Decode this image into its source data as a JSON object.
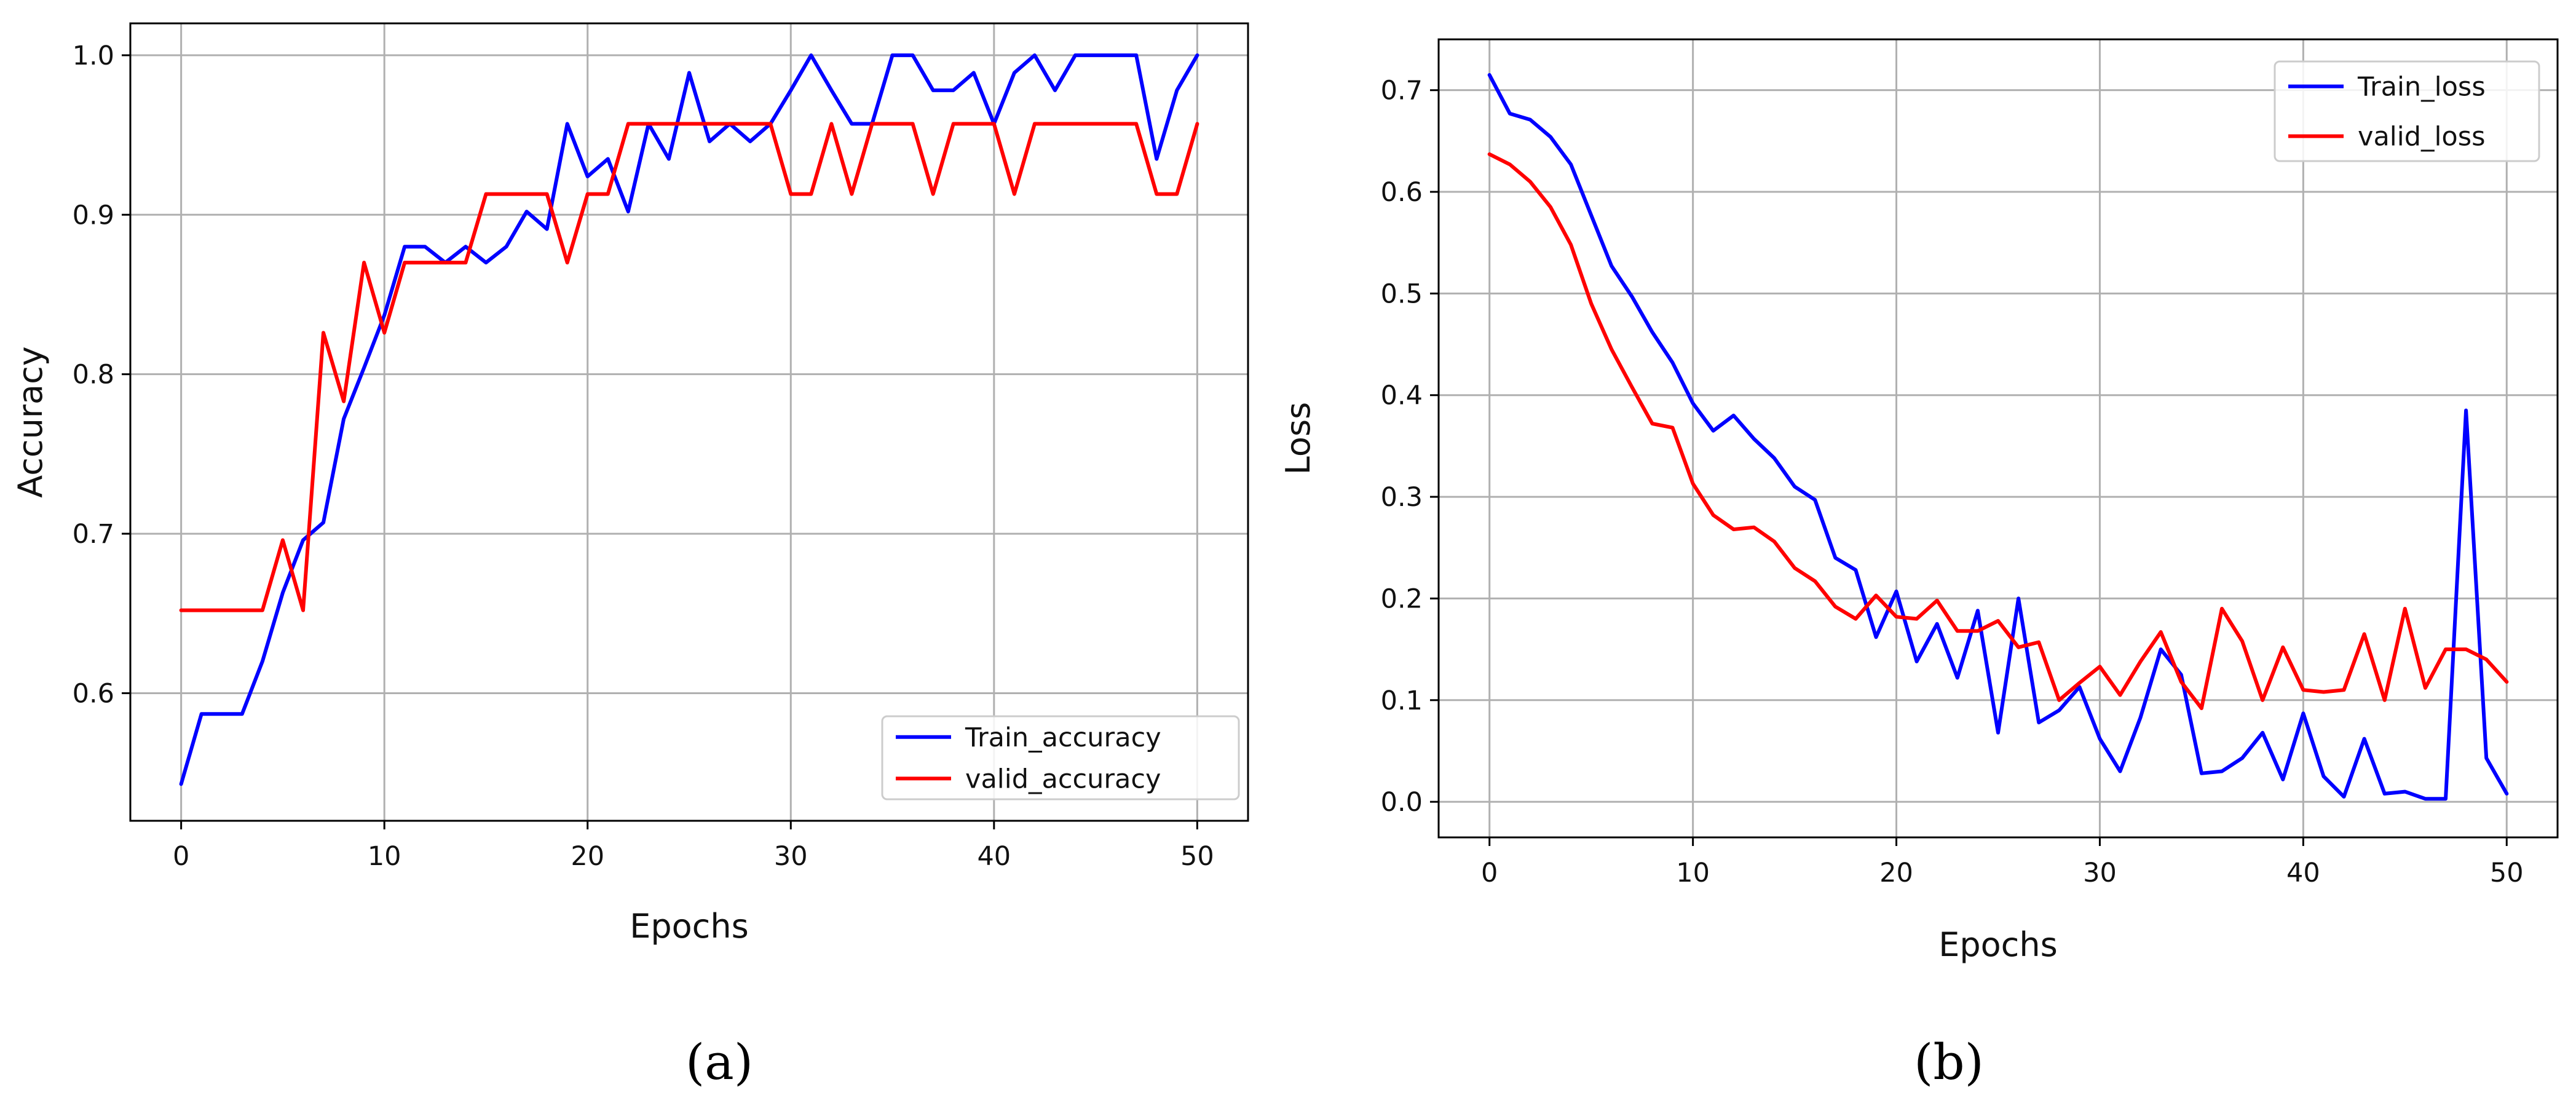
{
  "chart_data": [
    {
      "type": "line",
      "panel": "a",
      "caption": "(a)",
      "title": "",
      "xlabel": "Epochs",
      "ylabel": "Accuracy",
      "xlim": [
        -2.5,
        52.5
      ],
      "ylim": [
        0.52,
        1.02
      ],
      "xticks": [
        0,
        10,
        20,
        30,
        40,
        50
      ],
      "yticks": [
        0.6,
        0.7,
        0.8,
        0.9,
        1.0
      ],
      "ytick_labels": [
        "0.6",
        "0.7",
        "0.8",
        "0.9",
        "1.0"
      ],
      "grid": true,
      "legend_position": "lower-right",
      "x": [
        0,
        1,
        2,
        3,
        4,
        5,
        6,
        7,
        8,
        9,
        10,
        11,
        12,
        13,
        14,
        15,
        16,
        17,
        18,
        19,
        20,
        21,
        22,
        23,
        24,
        25,
        26,
        27,
        28,
        29,
        30,
        31,
        32,
        33,
        34,
        35,
        36,
        37,
        38,
        39,
        40,
        41,
        42,
        43,
        44,
        45,
        46,
        47,
        48,
        49,
        50
      ],
      "series": [
        {
          "name": "Train_accuracy",
          "color": "#0000ff",
          "values": [
            0.543,
            0.587,
            0.587,
            0.587,
            0.62,
            0.663,
            0.696,
            0.707,
            0.772,
            0.804,
            0.837,
            0.88,
            0.88,
            0.87,
            0.88,
            0.87,
            0.88,
            0.902,
            0.891,
            0.957,
            0.924,
            0.935,
            0.902,
            0.957,
            0.935,
            0.989,
            0.946,
            0.957,
            0.946,
            0.957,
            0.978,
            1.0,
            0.978,
            0.957,
            0.957,
            1.0,
            1.0,
            0.978,
            0.978,
            0.989,
            0.957,
            0.989,
            1.0,
            0.978,
            1.0,
            1.0,
            1.0,
            1.0,
            0.935,
            0.978,
            1.0
          ]
        },
        {
          "name": "valid_accuracy",
          "color": "#ff0000",
          "values": [
            0.652,
            0.652,
            0.652,
            0.652,
            0.652,
            0.696,
            0.652,
            0.826,
            0.783,
            0.87,
            0.826,
            0.87,
            0.87,
            0.87,
            0.87,
            0.913,
            0.913,
            0.913,
            0.913,
            0.87,
            0.913,
            0.913,
            0.957,
            0.957,
            0.957,
            0.957,
            0.957,
            0.957,
            0.957,
            0.957,
            0.913,
            0.913,
            0.957,
            0.913,
            0.957,
            0.957,
            0.957,
            0.913,
            0.957,
            0.957,
            0.957,
            0.913,
            0.957,
            0.957,
            0.957,
            0.957,
            0.957,
            0.957,
            0.913,
            0.913,
            0.957
          ]
        }
      ]
    },
    {
      "type": "line",
      "panel": "b",
      "caption": "(b)",
      "title": "",
      "xlabel": "Epochs",
      "ylabel": "Loss",
      "xlim": [
        -2.5,
        52.5
      ],
      "ylim": [
        -0.035,
        0.75
      ],
      "xticks": [
        0,
        10,
        20,
        30,
        40,
        50
      ],
      "yticks": [
        0.0,
        0.1,
        0.2,
        0.3,
        0.4,
        0.5,
        0.6,
        0.7
      ],
      "ytick_labels": [
        "0.0",
        "0.1",
        "0.2",
        "0.3",
        "0.4",
        "0.5",
        "0.6",
        "0.7"
      ],
      "grid": true,
      "legend_position": "upper-right",
      "x": [
        0,
        1,
        2,
        3,
        4,
        5,
        6,
        7,
        8,
        9,
        10,
        11,
        12,
        13,
        14,
        15,
        16,
        17,
        18,
        19,
        20,
        21,
        22,
        23,
        24,
        25,
        26,
        27,
        28,
        29,
        30,
        31,
        32,
        33,
        34,
        35,
        36,
        37,
        38,
        39,
        40,
        41,
        42,
        43,
        44,
        45,
        46,
        47,
        48,
        49,
        50
      ],
      "series": [
        {
          "name": "Train_loss",
          "color": "#0000ff",
          "values": [
            0.715,
            0.677,
            0.671,
            0.654,
            0.627,
            0.577,
            0.527,
            0.497,
            0.462,
            0.432,
            0.392,
            0.365,
            0.38,
            0.357,
            0.338,
            0.31,
            0.297,
            0.24,
            0.228,
            0.162,
            0.207,
            0.138,
            0.175,
            0.122,
            0.188,
            0.068,
            0.2,
            0.078,
            0.09,
            0.113,
            0.062,
            0.03,
            0.083,
            0.15,
            0.125,
            0.028,
            0.03,
            0.043,
            0.068,
            0.022,
            0.087,
            0.025,
            0.005,
            0.062,
            0.008,
            0.01,
            0.003,
            0.003,
            0.385,
            0.043,
            0.008
          ]
        },
        {
          "name": "valid_loss",
          "color": "#ff0000",
          "values": [
            0.637,
            0.627,
            0.61,
            0.585,
            0.548,
            0.49,
            0.445,
            0.408,
            0.372,
            0.368,
            0.313,
            0.282,
            0.268,
            0.27,
            0.256,
            0.23,
            0.217,
            0.192,
            0.18,
            0.203,
            0.182,
            0.18,
            0.198,
            0.168,
            0.168,
            0.178,
            0.152,
            0.157,
            0.1,
            0.117,
            0.133,
            0.105,
            0.138,
            0.167,
            0.118,
            0.092,
            0.19,
            0.158,
            0.1,
            0.152,
            0.11,
            0.108,
            0.11,
            0.165,
            0.1,
            0.19,
            0.112,
            0.15,
            0.15,
            0.14,
            0.118
          ]
        }
      ]
    }
  ]
}
